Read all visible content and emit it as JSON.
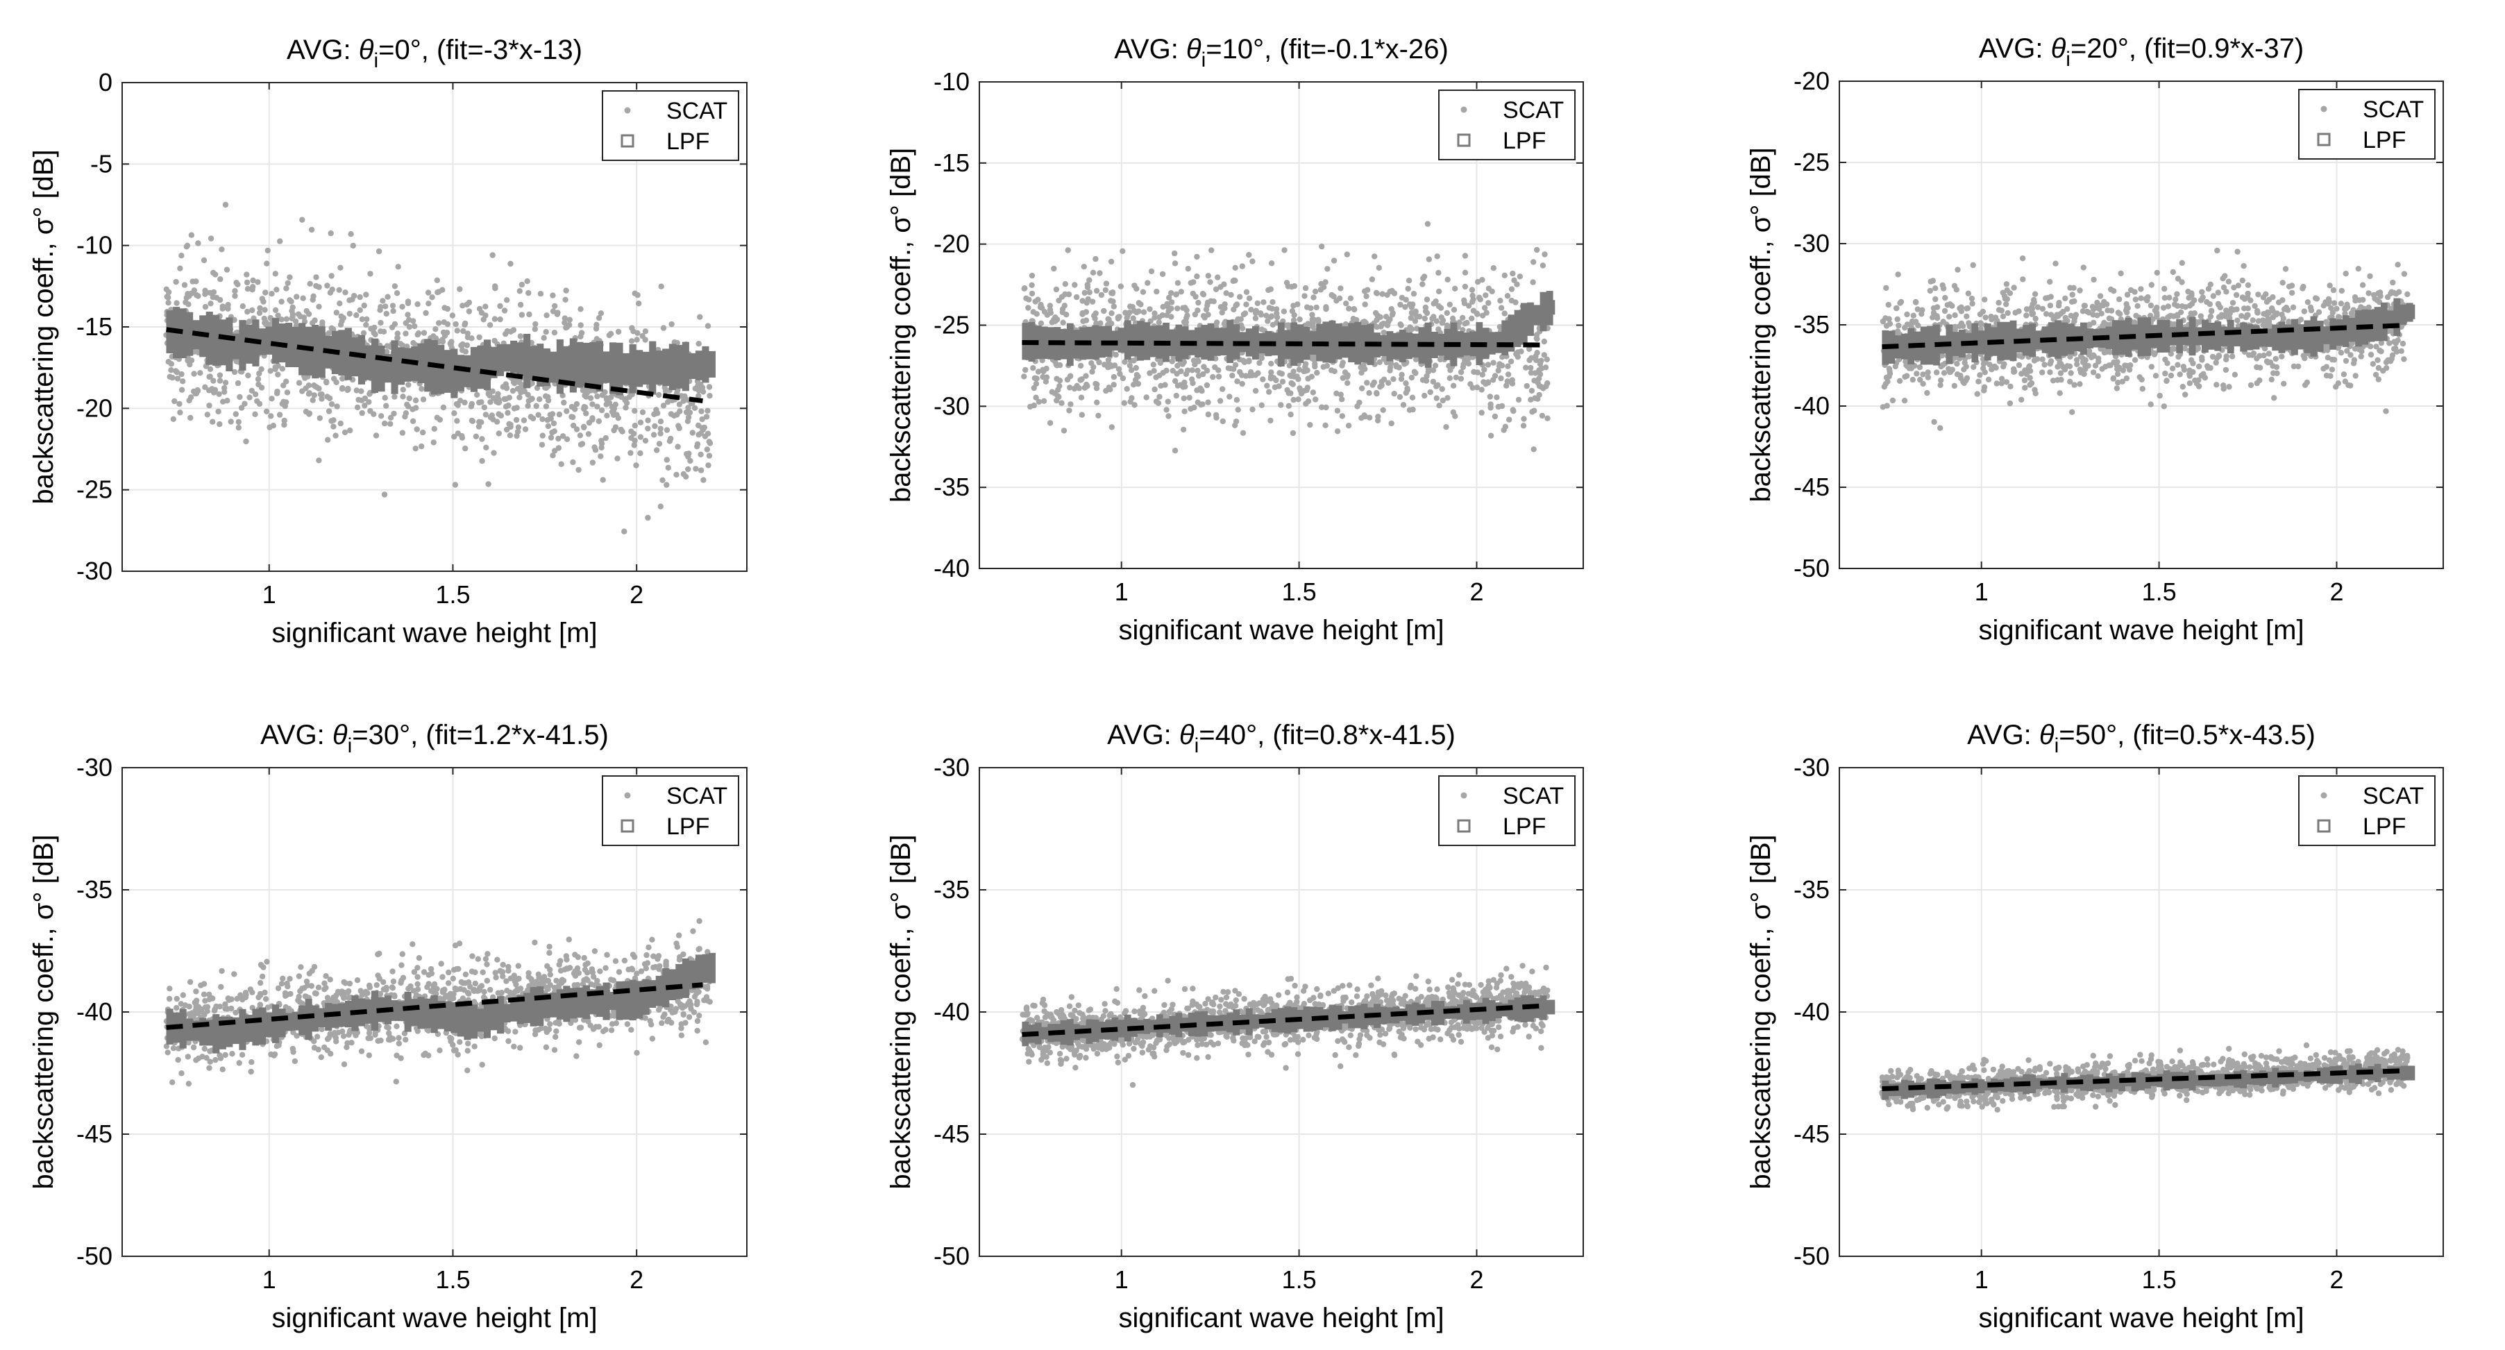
{
  "colors": {
    "scat": "#a6a6a6",
    "lpf": "#7a7a7a",
    "fit": "#000000",
    "grid": "#e6e6e6",
    "axis": "#262626",
    "background": "#ffffff"
  },
  "legend": {
    "scat": "SCAT",
    "lpf": "LPF"
  },
  "chart_data": [
    {
      "type": "scatter",
      "title_prefix": "AVG: ",
      "title_theta": "θ",
      "title_sub": "i",
      "title_suffix": "=0°, (fit=-3*x-13)",
      "xlabel": "significant wave height [m]",
      "ylabel": "backscattering coeff., σ° [dB]",
      "xlim": [
        0.6,
        2.3
      ],
      "ylim": [
        -30,
        0
      ],
      "xticks": [
        1,
        1.5,
        2
      ],
      "xtick_labels": [
        "1",
        "1.5",
        "2"
      ],
      "yticks": [
        0,
        -5,
        -10,
        -15,
        -20,
        -25,
        -30
      ],
      "ytick_labels": [
        "0",
        "-5",
        "-10",
        "-15",
        "-20",
        "-25",
        "-30"
      ],
      "fit": {
        "slope": -3,
        "intercept": -13,
        "x_range": [
          0.72,
          2.18
        ]
      },
      "scat_spread": 4.5,
      "scat_range": [
        -29.5,
        -6
      ],
      "lpf_amp": 1.2,
      "lpf_points": [
        [
          0.72,
          -15.3
        ],
        [
          0.8,
          -15.5
        ],
        [
          0.9,
          -16.2
        ],
        [
          1.0,
          -15.8
        ],
        [
          1.1,
          -16.5
        ],
        [
          1.2,
          -16.6
        ],
        [
          1.3,
          -17.6
        ],
        [
          1.4,
          -17.2
        ],
        [
          1.5,
          -17.9
        ],
        [
          1.55,
          -17.6
        ],
        [
          1.65,
          -16.8
        ],
        [
          1.75,
          -17.5
        ],
        [
          1.85,
          -17.3
        ],
        [
          1.95,
          -17.6
        ],
        [
          2.05,
          -17.5
        ],
        [
          2.15,
          -17.4
        ],
        [
          2.18,
          -17.3
        ]
      ],
      "legend": {
        "scat": "SCAT",
        "lpf": "LPF"
      }
    },
    {
      "type": "scatter",
      "title_prefix": "AVG: ",
      "title_theta": "θ",
      "title_sub": "i",
      "title_suffix": "=10°, (fit=-0.1*x-26)",
      "xlabel": "significant wave height [m]",
      "ylabel": "backscattering coeff., σ° [dB]",
      "xlim": [
        0.6,
        2.3
      ],
      "ylim": [
        -40,
        -10
      ],
      "xticks": [
        1,
        1.5,
        2
      ],
      "xtick_labels": [
        "1",
        "1.5",
        "2"
      ],
      "yticks": [
        -10,
        -15,
        -20,
        -25,
        -30,
        -35,
        -40
      ],
      "ytick_labels": [
        "-10",
        "-15",
        "-20",
        "-25",
        "-30",
        "-35",
        "-40"
      ],
      "fit": {
        "slope": -0.1,
        "intercept": -26,
        "x_range": [
          0.72,
          2.2
        ]
      },
      "scat_spread": 4.0,
      "scat_range": [
        -37.5,
        -15.5
      ],
      "lpf_amp": 1.0,
      "lpf_points": [
        [
          0.72,
          -26.0
        ],
        [
          0.85,
          -26.2
        ],
        [
          1.0,
          -25.9
        ],
        [
          1.15,
          -26.1
        ],
        [
          1.3,
          -26.0
        ],
        [
          1.45,
          -26.2
        ],
        [
          1.6,
          -26.0
        ],
        [
          1.75,
          -26.3
        ],
        [
          1.9,
          -26.2
        ],
        [
          2.05,
          -26.1
        ],
        [
          2.15,
          -24.5
        ],
        [
          2.2,
          -23.9
        ]
      ],
      "legend": {
        "scat": "SCAT",
        "lpf": "LPF"
      }
    },
    {
      "type": "scatter",
      "title_prefix": "AVG: ",
      "title_theta": "θ",
      "title_sub": "i",
      "title_suffix": "=20°, (fit=0.9*x-37)",
      "xlabel": "significant wave height [m]",
      "ylabel": "backscattering coeff., σ° [dB]",
      "xlim": [
        0.6,
        2.3
      ],
      "ylim": [
        -50,
        -20
      ],
      "xticks": [
        1,
        1.5,
        2
      ],
      "xtick_labels": [
        "1",
        "1.5",
        "2"
      ],
      "yticks": [
        -20,
        -25,
        -30,
        -35,
        -40,
        -45,
        -50
      ],
      "ytick_labels": [
        "-20",
        "-25",
        "-30",
        "-35",
        "-40",
        "-45",
        "-50"
      ],
      "fit": {
        "slope": 0.9,
        "intercept": -37,
        "x_range": [
          0.72,
          2.2
        ]
      },
      "scat_spread": 3.0,
      "scat_range": [
        -44,
        -27
      ],
      "lpf_amp": 0.9,
      "lpf_points": [
        [
          0.72,
          -36.4
        ],
        [
          0.9,
          -36.2
        ],
        [
          1.05,
          -36.0
        ],
        [
          1.2,
          -35.9
        ],
        [
          1.35,
          -35.8
        ],
        [
          1.5,
          -35.7
        ],
        [
          1.65,
          -35.7
        ],
        [
          1.8,
          -35.8
        ],
        [
          1.95,
          -35.7
        ],
        [
          2.1,
          -35.0
        ],
        [
          2.2,
          -34.2
        ]
      ],
      "legend": {
        "scat": "SCAT",
        "lpf": "LPF"
      }
    },
    {
      "type": "scatter",
      "title_prefix": "AVG: ",
      "title_theta": "θ",
      "title_sub": "i",
      "title_suffix": "=30°, (fit=1.2*x-41.5)",
      "xlabel": "significant wave height [m]",
      "ylabel": "backscattering coeff., σ° [dB]",
      "xlim": [
        0.6,
        2.3
      ],
      "ylim": [
        -50,
        -30
      ],
      "xticks": [
        1,
        1.5,
        2
      ],
      "xtick_labels": [
        "1",
        "1.5",
        "2"
      ],
      "yticks": [
        -30,
        -35,
        -40,
        -45,
        -50
      ],
      "ytick_labels": [
        "-30",
        "-35",
        "-40",
        "-45",
        "-50"
      ],
      "fit": {
        "slope": 1.2,
        "intercept": -41.5,
        "x_range": [
          0.72,
          2.18
        ]
      },
      "scat_spread": 1.6,
      "scat_range": [
        -46,
        -32.5
      ],
      "lpf_amp": 0.6,
      "lpf_points": [
        [
          0.72,
          -40.6
        ],
        [
          0.85,
          -40.9
        ],
        [
          1.0,
          -40.5
        ],
        [
          1.15,
          -40.2
        ],
        [
          1.3,
          -39.9
        ],
        [
          1.45,
          -40.1
        ],
        [
          1.55,
          -40.4
        ],
        [
          1.7,
          -39.8
        ],
        [
          1.85,
          -39.6
        ],
        [
          2.0,
          -39.5
        ],
        [
          2.1,
          -38.8
        ],
        [
          2.18,
          -38.2
        ]
      ],
      "legend": {
        "scat": "SCAT",
        "lpf": "LPF"
      }
    },
    {
      "type": "scatter",
      "title_prefix": "AVG: ",
      "title_theta": "θ",
      "title_sub": "i",
      "title_suffix": "=40°, (fit=0.8*x-41.5)",
      "xlabel": "significant wave height [m]",
      "ylabel": "backscattering coeff., σ° [dB]",
      "xlim": [
        0.6,
        2.3
      ],
      "ylim": [
        -50,
        -30
      ],
      "xticks": [
        1,
        1.5,
        2
      ],
      "xtick_labels": [
        "1",
        "1.5",
        "2"
      ],
      "yticks": [
        -30,
        -35,
        -40,
        -45,
        -50
      ],
      "ytick_labels": [
        "-30",
        "-35",
        "-40",
        "-45",
        "-50"
      ],
      "fit": {
        "slope": 0.8,
        "intercept": -41.5,
        "x_range": [
          0.72,
          2.2
        ]
      },
      "scat_spread": 1.1,
      "scat_range": [
        -45,
        -36.3
      ],
      "lpf_amp": 0.4,
      "lpf_points": [
        [
          0.72,
          -40.9
        ],
        [
          0.9,
          -40.8
        ],
        [
          1.05,
          -40.6
        ],
        [
          1.2,
          -40.5
        ],
        [
          1.35,
          -40.4
        ],
        [
          1.5,
          -40.3
        ],
        [
          1.65,
          -40.2
        ],
        [
          1.8,
          -40.1
        ],
        [
          1.95,
          -40.0
        ],
        [
          2.1,
          -39.9
        ],
        [
          2.2,
          -39.8
        ]
      ],
      "legend": {
        "scat": "SCAT",
        "lpf": "LPF"
      }
    },
    {
      "type": "scatter",
      "title_prefix": "AVG: ",
      "title_theta": "θ",
      "title_sub": "i",
      "title_suffix": "=50°, (fit=0.5*x-43.5)",
      "xlabel": "significant wave height [m]",
      "ylabel": "backscattering coeff., σ° [dB]",
      "xlim": [
        0.6,
        2.3
      ],
      "ylim": [
        -50,
        -30
      ],
      "xticks": [
        1,
        1.5,
        2
      ],
      "xtick_labels": [
        "1",
        "1.5",
        "2"
      ],
      "yticks": [
        -30,
        -35,
        -40,
        -45,
        -50
      ],
      "ytick_labels": [
        "-30",
        "-35",
        "-40",
        "-45",
        "-50"
      ],
      "fit": {
        "slope": 0.5,
        "intercept": -43.5,
        "x_range": [
          0.72,
          2.2
        ]
      },
      "scat_spread": 0.7,
      "scat_range": [
        -45.8,
        -40.7
      ],
      "lpf_amp": 0.3,
      "lpf_points": [
        [
          0.72,
          -43.2
        ],
        [
          0.9,
          -43.1
        ],
        [
          1.05,
          -43.0
        ],
        [
          1.2,
          -42.9
        ],
        [
          1.35,
          -42.9
        ],
        [
          1.5,
          -42.8
        ],
        [
          1.65,
          -42.8
        ],
        [
          1.8,
          -42.7
        ],
        [
          1.95,
          -42.6
        ],
        [
          2.1,
          -42.5
        ],
        [
          2.2,
          -42.5
        ]
      ],
      "legend": {
        "scat": "SCAT",
        "lpf": "LPF"
      }
    }
  ]
}
